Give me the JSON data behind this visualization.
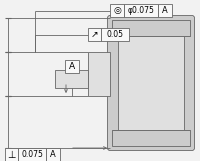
{
  "bg_color": "#f2f2f2",
  "line_color": "#666666",
  "fill_body": "#cccccc",
  "fill_inner": "#e0e0e0",
  "fill_white": "#f8f8f8",
  "fig_width": 2.0,
  "fig_height": 1.61,
  "dpi": 100,
  "annotations": {
    "top_symbol": "◎",
    "top_tol": "φ0.075",
    "top_datum": "A",
    "mid_arrow": "↗",
    "mid_tol": "0.05",
    "datum_label": "A",
    "bot_symbol": "⊥",
    "bot_tol": "0.075",
    "bot_datum": "A"
  }
}
